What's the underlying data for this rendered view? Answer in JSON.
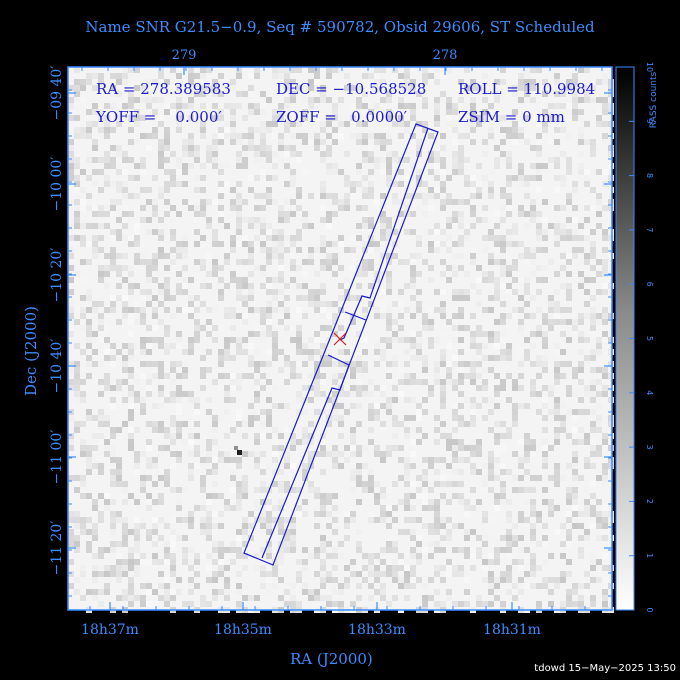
{
  "chart_data": {
    "type": "heatmap",
    "title": "Name SNR G21.5−0.9, Seq # 590782, Obsid 29606, ST Scheduled",
    "xlabel": "RA (J2000)",
    "ylabel": "Dec (J2000)",
    "x_ticks_bottom": [
      "18h37m",
      "18h35m",
      "18h33m",
      "18h31m"
    ],
    "x_ticks_top": [
      "279",
      "278"
    ],
    "y_ticks": [
      "−09 40′",
      "−10 00′",
      "−10 20′",
      "−10 40′",
      "−11 00′",
      "−11 20′"
    ],
    "colorbar": {
      "label": "RASS counts",
      "ticks": [
        "0",
        "1",
        "2",
        "3",
        "4",
        "5",
        "6",
        "7",
        "8",
        "9",
        "10"
      ],
      "range": [
        0,
        10
      ]
    },
    "info": {
      "ra": "RA = 278.389583",
      "dec": "DEC = −10.568528",
      "roll": "ROLL = 110.9984",
      "yoff": "YOFF =    0.000′",
      "zoff": "ZOFF =   0.0000′",
      "zsim": "ZSIM = 0 mm"
    },
    "colors": {
      "background": "#000000",
      "axes": "#3a8cff",
      "detector": "#1a1ad0",
      "aimpoint": "#d02020"
    }
  },
  "footer": "tdowd 15−May−2025 13:50"
}
